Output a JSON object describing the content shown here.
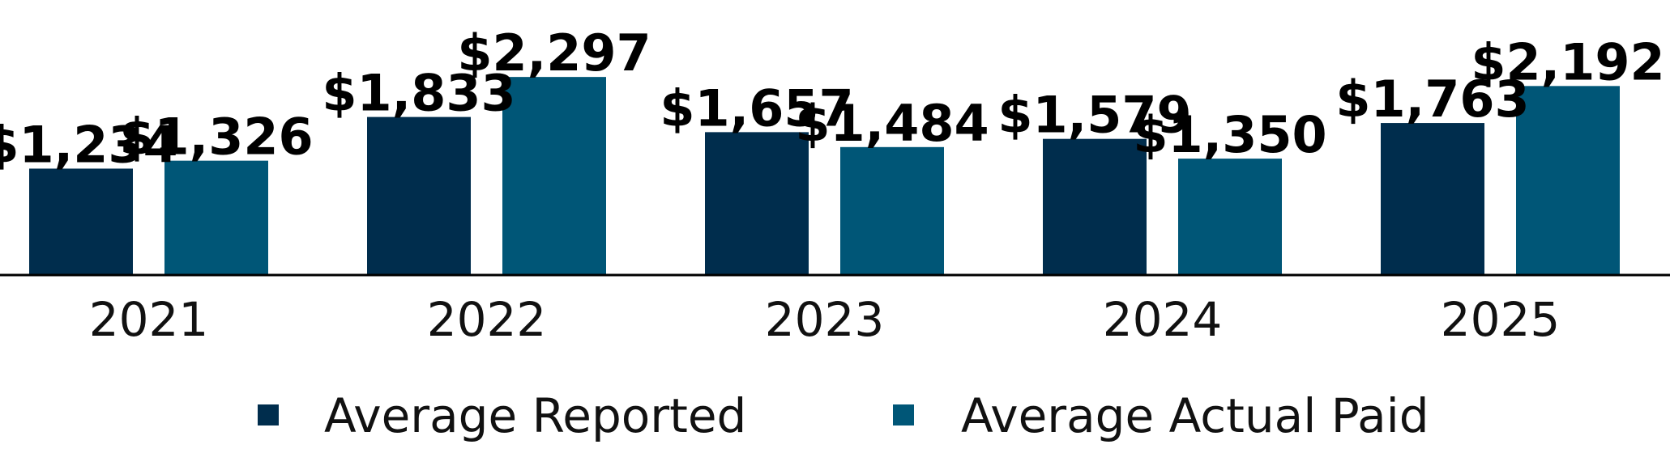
{
  "chart_data": {
    "type": "bar",
    "title": "",
    "xlabel": "",
    "ylabel": "",
    "categories": [
      "2021",
      "2022",
      "2023",
      "2024",
      "2025"
    ],
    "series": [
      {
        "name": "Average Reported",
        "values": [
          1234,
          1833,
          1657,
          1579,
          1763
        ],
        "labels": [
          "$1,234",
          "$1,833",
          "$1,657",
          "$1,579",
          "$1,763"
        ],
        "color": "#002D4D"
      },
      {
        "name": "Average Actual Paid",
        "values": [
          1326,
          2297,
          1484,
          1350,
          2192
        ],
        "labels": [
          "$1,326",
          "$2,297",
          "$1,484",
          "$1,350",
          "$2,192"
        ],
        "color": "#005677"
      }
    ],
    "ylim": [
      0,
      2500
    ],
    "grid": false,
    "legend_position": "bottom"
  }
}
